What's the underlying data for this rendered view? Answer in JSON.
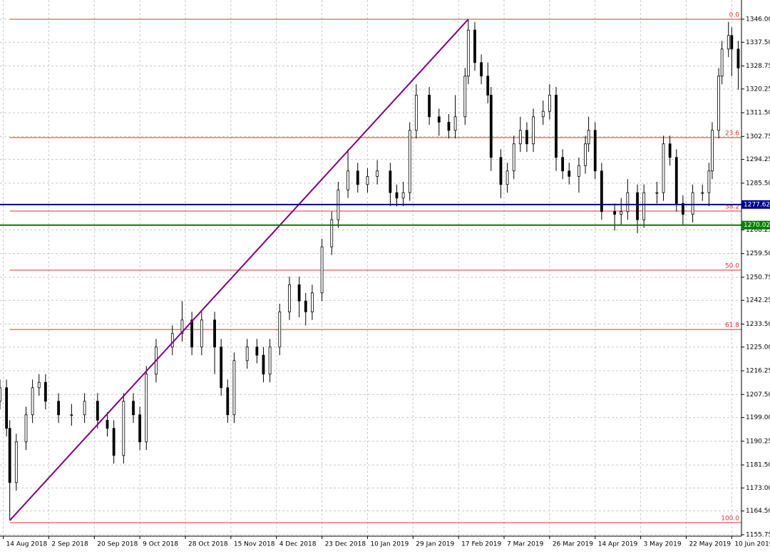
{
  "chart_data": {
    "type": "candlestick",
    "up_color": "#ffffff",
    "down_color": "#000000",
    "grid": true,
    "xlim": [
      0,
      228
    ],
    "ylim": [
      1155.2,
      1353.1
    ],
    "xticks": [
      {
        "value": 1,
        "label": "14 Aug 2018"
      },
      {
        "value": 15,
        "label": "2 Sep 2018"
      },
      {
        "value": 29,
        "label": "20 Sep 2018"
      },
      {
        "value": 43,
        "label": "9 Oct 2018"
      },
      {
        "value": 57,
        "label": "28 Oct 2018"
      },
      {
        "value": 71,
        "label": "15 Nov 2018"
      },
      {
        "value": 85,
        "label": "4 Dec 2018"
      },
      {
        "value": 99,
        "label": "23 Dec 2018"
      },
      {
        "value": 113,
        "label": "10 Jan 2019"
      },
      {
        "value": 127,
        "label": "29 Jan 2019"
      },
      {
        "value": 141,
        "label": "17 Feb 2019"
      },
      {
        "value": 155,
        "label": "7 Mar 2019"
      },
      {
        "value": 169,
        "label": "26 Mar 2019"
      },
      {
        "value": 183,
        "label": "14 Apr 2019"
      },
      {
        "value": 197,
        "label": "3 May 2019"
      },
      {
        "value": 211,
        "label": "22 May 2019"
      },
      {
        "value": 225,
        "label": "10 Jun 2019"
      }
    ],
    "yticks": [
      {
        "value": 1155.75,
        "label": "1155.75"
      },
      {
        "value": 1164.5,
        "label": "1164.50"
      },
      {
        "value": 1173,
        "label": "1173.00"
      },
      {
        "value": 1181.5,
        "label": "1181.50"
      },
      {
        "value": 1190.25,
        "label": "1190.25"
      },
      {
        "value": 1199,
        "label": "1199.00"
      },
      {
        "value": 1207.5,
        "label": "1207.50"
      },
      {
        "value": 1216.25,
        "label": "1216.25"
      },
      {
        "value": 1225,
        "label": "1225.00"
      },
      {
        "value": 1233.5,
        "label": "1233.50"
      },
      {
        "value": 1242.25,
        "label": "1242.25"
      },
      {
        "value": 1250.75,
        "label": "1250.75"
      },
      {
        "value": 1259.5,
        "label": "1259.50"
      },
      {
        "value": 1268.25,
        "label": "1268.25"
      },
      {
        "value": 1285.5,
        "label": "1285.50"
      },
      {
        "value": 1294.25,
        "label": "1294.25"
      },
      {
        "value": 1302.75,
        "label": "1302.75"
      },
      {
        "value": 1311.5,
        "label": "1311.50"
      },
      {
        "value": 1320.25,
        "label": "1320.25"
      },
      {
        "value": 1328.75,
        "label": "1328.75"
      },
      {
        "value": 1337.5,
        "label": "1337.50"
      },
      {
        "value": 1346,
        "label": "1346.00"
      }
    ],
    "x": [
      0,
      2,
      3,
      5,
      8,
      10,
      12,
      14,
      18,
      22,
      26,
      30,
      33,
      35,
      38,
      41,
      43,
      45,
      48,
      53,
      56,
      59,
      62,
      66,
      68,
      70,
      72,
      76,
      79,
      81,
      83,
      86,
      89,
      92,
      94,
      96,
      99,
      102,
      104,
      107,
      110,
      113,
      116,
      120,
      122,
      124,
      126,
      128,
      132,
      135,
      138,
      140,
      143,
      144,
      146,
      148,
      150,
      151,
      154,
      156,
      158,
      160,
      162,
      164,
      167,
      169,
      171,
      173,
      175,
      178,
      180,
      181,
      183,
      185,
      189,
      191,
      193,
      196,
      198,
      202,
      204,
      206,
      208,
      210,
      213,
      216,
      218,
      219,
      221,
      222,
      224,
      225,
      227
    ],
    "open": [
      1205,
      1210,
      1195,
      1175,
      1190,
      1200,
      1210,
      1212,
      1205,
      1200,
      1200,
      1205,
      1198,
      1195,
      1185,
      1205,
      1200,
      1190,
      1215,
      1225,
      1230,
      1235,
      1225,
      1235,
      1225,
      1210,
      1200,
      1220,
      1225,
      1222,
      1215,
      1225,
      1238,
      1248,
      1242,
      1238,
      1245,
      1262,
      1272,
      1283,
      1290,
      1285,
      1288,
      1290,
      1282,
      1280,
      1282,
      1305,
      1318,
      1310,
      1308,
      1305,
      1310,
      1325,
      1342,
      1330,
      1325,
      1318,
      1295,
      1285,
      1290,
      1300,
      1305,
      1300,
      1310,
      1312,
      1318,
      1295,
      1290,
      1288,
      1292,
      1300,
      1305,
      1290,
      1275,
      1274,
      1275,
      1282,
      1272,
      1282,
      1282,
      1300,
      1295,
      1278,
      1274,
      1282,
      1282,
      1290,
      1305,
      1325,
      1335,
      1340,
      1335
    ],
    "high": [
      1213,
      1213,
      1198,
      1193,
      1203,
      1213,
      1215,
      1215,
      1208,
      1204,
      1208,
      1208,
      1201,
      1198,
      1208,
      1208,
      1203,
      1218,
      1228,
      1233,
      1242,
      1238,
      1238,
      1238,
      1228,
      1213,
      1223,
      1228,
      1228,
      1225,
      1228,
      1241,
      1251,
      1251,
      1245,
      1248,
      1265,
      1275,
      1286,
      1298,
      1293,
      1291,
      1294,
      1293,
      1285,
      1286,
      1308,
      1322,
      1321,
      1313,
      1311,
      1318,
      1328,
      1346,
      1345,
      1333,
      1330,
      1321,
      1298,
      1293,
      1303,
      1310,
      1308,
      1313,
      1316,
      1322,
      1321,
      1298,
      1293,
      1295,
      1303,
      1310,
      1308,
      1293,
      1278,
      1280,
      1287,
      1285,
      1285,
      1286,
      1303,
      1303,
      1298,
      1281,
      1285,
      1285,
      1293,
      1308,
      1328,
      1338,
      1345,
      1343,
      1338
    ],
    "low": [
      1202,
      1192,
      1161,
      1172,
      1187,
      1197,
      1207,
      1202,
      1197,
      1196,
      1197,
      1195,
      1192,
      1182,
      1182,
      1197,
      1187,
      1187,
      1212,
      1222,
      1227,
      1222,
      1222,
      1215,
      1207,
      1197,
      1197,
      1217,
      1219,
      1212,
      1212,
      1222,
      1235,
      1236,
      1233,
      1235,
      1242,
      1259,
      1269,
      1280,
      1282,
      1282,
      1285,
      1277,
      1277,
      1277,
      1279,
      1302,
      1307,
      1303,
      1302,
      1302,
      1307,
      1322,
      1327,
      1322,
      1315,
      1290,
      1280,
      1282,
      1287,
      1297,
      1297,
      1297,
      1307,
      1309,
      1290,
      1287,
      1285,
      1282,
      1289,
      1297,
      1287,
      1272,
      1268,
      1270,
      1272,
      1267,
      1269,
      1278,
      1279,
      1292,
      1275,
      1270,
      1271,
      1279,
      1277,
      1287,
      1302,
      1322,
      1332,
      1325,
      1320
    ],
    "close": [
      1210,
      1195,
      1175,
      1190,
      1200,
      1210,
      1212,
      1205,
      1200,
      1200,
      1205,
      1198,
      1195,
      1185,
      1205,
      1200,
      1190,
      1215,
      1225,
      1230,
      1235,
      1225,
      1235,
      1225,
      1210,
      1200,
      1220,
      1225,
      1222,
      1215,
      1225,
      1238,
      1248,
      1242,
      1238,
      1245,
      1262,
      1272,
      1283,
      1290,
      1285,
      1288,
      1290,
      1282,
      1280,
      1282,
      1305,
      1318,
      1310,
      1308,
      1305,
      1310,
      1325,
      1342,
      1330,
      1325,
      1318,
      1295,
      1285,
      1290,
      1300,
      1305,
      1300,
      1310,
      1312,
      1318,
      1295,
      1290,
      1288,
      1292,
      1300,
      1305,
      1290,
      1275,
      1274,
      1275,
      1282,
      1272,
      1282,
      1282,
      1300,
      1295,
      1278,
      1274,
      1282,
      1282,
      1290,
      1305,
      1325,
      1335,
      1340,
      1335,
      1328
    ],
    "trendline": {
      "x": [
        3,
        144
      ],
      "y": [
        1161,
        1346
      ],
      "color": "#800080"
    },
    "fibo": {
      "color": "#e03030",
      "levels": [
        {
          "value": 1346,
          "label": "0.0"
        },
        {
          "value": 1302.3,
          "label": "23.6"
        },
        {
          "value": 1275.2,
          "label": "38.2"
        },
        {
          "value": 1253.4,
          "label": "50.0"
        },
        {
          "value": 1231.5,
          "label": "61.8"
        },
        {
          "value": 1160.2,
          "label": "100.0"
        }
      ]
    },
    "hlines": [
      {
        "value": 1277.62,
        "color": "#00008b"
      },
      {
        "value": 1270.02,
        "color": "#008000"
      }
    ]
  }
}
